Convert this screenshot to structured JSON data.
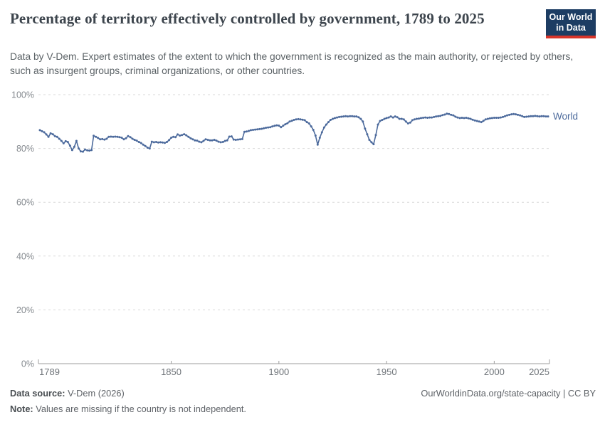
{
  "header": {
    "title": "Percentage of territory effectively controlled by government, 1789 to 2025",
    "subtitle": "Data by V-Dem. Expert estimates of the extent to which the government is recognized as the main authority, or rejected by others, such as insurgent groups, criminal organizations, or other countries.",
    "logo": {
      "line1": "Our World",
      "line2": "in Data"
    }
  },
  "footer": {
    "data_source_label": "Data source:",
    "data_source_value": "V-Dem (2026)",
    "note_label": "Note:",
    "note_value": "Values are missing if the country is not independent.",
    "link": "OurWorldinData.org/state-capacity | CC BY"
  },
  "colors": {
    "line": "#4c6a9c",
    "logo_navy": "#1d3d63",
    "logo_red": "#d8352a",
    "grid": "#d9d9d9",
    "axis": "#9c9c9c",
    "title_text": "#3d454d"
  },
  "chart_data": {
    "type": "line",
    "title": "Percentage of territory effectively controlled by government, 1789 to 2025",
    "xlabel": "",
    "ylabel": "",
    "x_start": 1789,
    "x_end": 2025,
    "xticks": [
      1789,
      1850,
      1900,
      1950,
      2000,
      2025
    ],
    "xtick_labels": [
      "1789",
      "1850",
      "1900",
      "1950",
      "2000",
      "2025"
    ],
    "yticks": [
      0,
      20,
      40,
      60,
      80,
      100
    ],
    "ytick_labels": [
      "0%",
      "20%",
      "40%",
      "60%",
      "80%",
      "100%"
    ],
    "ylim": [
      0,
      100
    ],
    "grid": "horizontal-dashed",
    "legend": "line-end-label",
    "series": [
      {
        "name": "World",
        "color": "#4c6a9c",
        "values": [
          86.8,
          86.4,
          86.0,
          85.2,
          84.3,
          85.6,
          85.3,
          84.6,
          84.3,
          83.6,
          82.8,
          81.9,
          82.7,
          82.4,
          81.0,
          79.4,
          80.6,
          82.8,
          80.0,
          78.9,
          78.8,
          79.6,
          79.3,
          79.2,
          79.4,
          84.7,
          84.3,
          83.9,
          83.4,
          83.5,
          83.3,
          83.6,
          84.3,
          84.4,
          84.3,
          84.4,
          84.3,
          84.2,
          84.0,
          83.4,
          83.8,
          84.6,
          84.2,
          83.6,
          83.2,
          82.9,
          82.4,
          82.0,
          81.4,
          80.9,
          80.3,
          80.0,
          82.5,
          82.3,
          82.4,
          82.2,
          82.3,
          82.2,
          82.1,
          82.4,
          83.1,
          84.0,
          84.3,
          84.2,
          85.2,
          84.8,
          85.0,
          85.3,
          84.9,
          84.3,
          83.8,
          83.4,
          83.0,
          82.9,
          82.5,
          82.3,
          82.8,
          83.4,
          83.2,
          83.0,
          83.0,
          83.2,
          82.9,
          82.5,
          82.3,
          82.4,
          82.8,
          83.0,
          84.4,
          84.5,
          83.3,
          83.2,
          83.3,
          83.4,
          83.5,
          86.2,
          86.3,
          86.5,
          86.8,
          86.9,
          87.0,
          87.1,
          87.2,
          87.3,
          87.5,
          87.7,
          87.8,
          87.9,
          88.2,
          88.4,
          88.6,
          88.5,
          87.9,
          88.5,
          89.0,
          89.4,
          90.0,
          90.3,
          90.6,
          90.8,
          90.9,
          90.8,
          90.7,
          90.5,
          89.8,
          89.3,
          88.2,
          86.9,
          84.8,
          81.4,
          84.0,
          86.0,
          87.8,
          88.9,
          89.8,
          90.6,
          91.0,
          91.3,
          91.5,
          91.7,
          91.8,
          91.9,
          92.0,
          91.9,
          92.0,
          92.0,
          91.9,
          91.9,
          91.6,
          91.0,
          90.0,
          87.4,
          85.3,
          83.2,
          82.3,
          81.6,
          85.0,
          88.9,
          90.2,
          90.6,
          91.0,
          91.3,
          91.5,
          91.9,
          91.5,
          91.9,
          91.6,
          91.0,
          91.0,
          90.8,
          90.0,
          89.3,
          89.6,
          90.5,
          90.8,
          91.0,
          91.1,
          91.3,
          91.4,
          91.5,
          91.4,
          91.5,
          91.5,
          91.7,
          91.9,
          92.0,
          92.1,
          92.4,
          92.6,
          92.9,
          92.8,
          92.5,
          92.3,
          91.8,
          91.5,
          91.3,
          91.4,
          91.3,
          91.4,
          91.2,
          91.0,
          90.7,
          90.4,
          90.2,
          90.0,
          89.8,
          90.3,
          90.8,
          91.0,
          91.2,
          91.3,
          91.4,
          91.4,
          91.4,
          91.5,
          91.7,
          92.0,
          92.3,
          92.5,
          92.7,
          92.8,
          92.7,
          92.5,
          92.3,
          92.0,
          91.7,
          91.8,
          91.9,
          92.0,
          92.0,
          92.1,
          92.0,
          91.9,
          92.0,
          92.0,
          91.9,
          91.9
        ]
      }
    ]
  }
}
